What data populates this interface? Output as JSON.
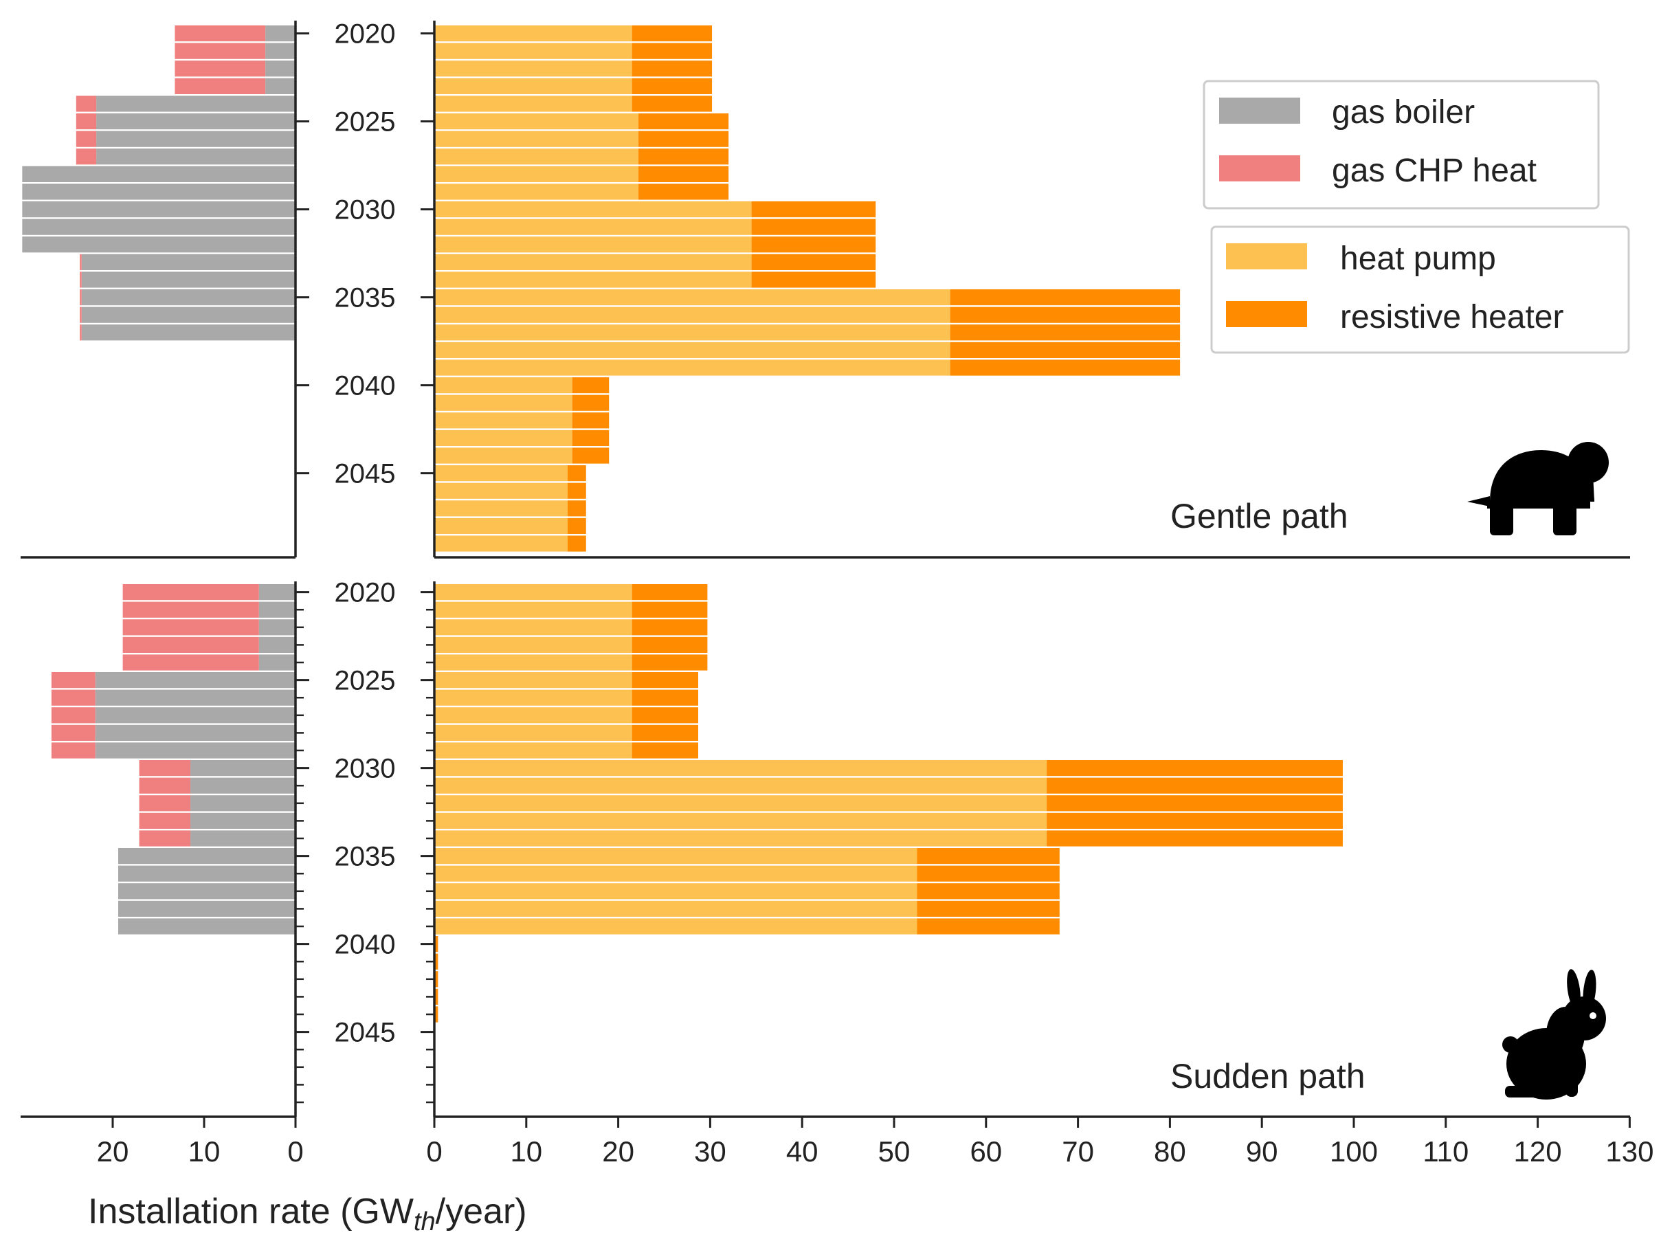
{
  "chart_data": {
    "type": "bar",
    "orientation": "horizontal",
    "x_unit": "GW_th/year",
    "xlabel": {
      "main": "Installation rate (GW",
      "sub": "th",
      "tail": "/year)"
    },
    "years": [
      2020,
      2021,
      2022,
      2023,
      2024,
      2025,
      2026,
      2027,
      2028,
      2029,
      2030,
      2031,
      2032,
      2033,
      2034,
      2035,
      2036,
      2037,
      2038,
      2039,
      2040,
      2041,
      2042,
      2043,
      2044,
      2045,
      2046,
      2047,
      2048,
      2049
    ],
    "y_tick_labels": [
      "2020",
      "2025",
      "2030",
      "2035",
      "2040",
      "2045"
    ],
    "left_axis": {
      "ticks": [
        "20",
        "10",
        "0"
      ],
      "xlim": [
        30,
        0
      ]
    },
    "right_axis": {
      "ticks": [
        "0",
        "10",
        "20",
        "30",
        "40",
        "50",
        "60",
        "70",
        "80",
        "90",
        "100",
        "110",
        "120",
        "130"
      ],
      "xlim": [
        0,
        130
      ]
    },
    "colors": {
      "gas_boiler": "#a9a9a9",
      "gas_chp_heat": "#f08080",
      "heat_pump": "#fdc151",
      "resistive_heater": "#ff8c00"
    },
    "legend_fossil": [
      {
        "key": "gas_boiler",
        "label": "gas boiler"
      },
      {
        "key": "gas_chp_heat",
        "label": "gas CHP heat"
      }
    ],
    "legend_electric": [
      {
        "key": "heat_pump",
        "label": "heat pump"
      },
      {
        "key": "resistive_heater",
        "label": "resistive heater"
      }
    ],
    "panels": [
      {
        "annotation": "Gentle path",
        "icon": "turtle-icon",
        "gas_boiler": [
          3.3,
          3.3,
          3.3,
          3.3,
          21.8,
          21.8,
          21.8,
          21.8,
          29.9,
          29.9,
          29.9,
          29.9,
          29.9,
          23.4,
          23.4,
          23.4,
          23.4,
          23.4,
          0,
          0,
          0,
          0,
          0,
          0,
          0,
          0,
          0,
          0,
          0,
          0
        ],
        "gas_chp_heat": [
          9.9,
          9.9,
          9.9,
          9.9,
          2.2,
          2.2,
          2.2,
          2.2,
          0,
          0,
          0,
          0,
          0,
          0.2,
          0.2,
          0.2,
          0.2,
          0.2,
          0,
          0,
          0,
          0,
          0,
          0,
          0,
          0,
          0,
          0,
          0,
          0
        ],
        "heat_pump": [
          21.5,
          21.5,
          21.5,
          21.5,
          21.5,
          22.2,
          22.2,
          22.2,
          22.2,
          22.2,
          34.5,
          34.5,
          34.5,
          34.5,
          34.5,
          56.1,
          56.1,
          56.1,
          56.1,
          56.1,
          15.0,
          15.0,
          15.0,
          15.0,
          15.0,
          14.5,
          14.5,
          14.5,
          14.5,
          14.5
        ],
        "resistive_heater": [
          8.7,
          8.7,
          8.7,
          8.7,
          8.7,
          9.8,
          9.8,
          9.8,
          9.8,
          9.8,
          13.5,
          13.5,
          13.5,
          13.5,
          13.5,
          25.0,
          25.0,
          25.0,
          25.0,
          25.0,
          4.0,
          4.0,
          4.0,
          4.0,
          4.0,
          2.0,
          2.0,
          2.0,
          2.0,
          2.0
        ]
      },
      {
        "annotation": "Sudden path",
        "icon": "rabbit-icon",
        "gas_boiler": [
          4.0,
          4.0,
          4.0,
          4.0,
          4.0,
          21.9,
          21.9,
          21.9,
          21.9,
          21.9,
          11.5,
          11.5,
          11.5,
          11.5,
          11.5,
          19.4,
          19.4,
          19.4,
          19.4,
          19.4,
          0,
          0,
          0,
          0,
          0,
          0,
          0,
          0,
          0,
          0
        ],
        "gas_chp_heat": [
          14.9,
          14.9,
          14.9,
          14.9,
          14.9,
          4.8,
          4.8,
          4.8,
          4.8,
          4.8,
          5.6,
          5.6,
          5.6,
          5.6,
          5.6,
          0,
          0,
          0,
          0,
          0,
          0,
          0,
          0,
          0,
          0,
          0,
          0,
          0,
          0,
          0
        ],
        "heat_pump": [
          21.5,
          21.5,
          21.5,
          21.5,
          21.5,
          21.5,
          21.5,
          21.5,
          21.5,
          21.5,
          66.6,
          66.6,
          66.6,
          66.6,
          66.6,
          52.5,
          52.5,
          52.5,
          52.5,
          52.5,
          0,
          0,
          0,
          0,
          0,
          0,
          0,
          0,
          0,
          0
        ],
        "resistive_heater": [
          8.2,
          8.2,
          8.2,
          8.2,
          8.2,
          7.2,
          7.2,
          7.2,
          7.2,
          7.2,
          32.2,
          32.2,
          32.2,
          32.2,
          32.2,
          15.5,
          15.5,
          15.5,
          15.5,
          15.5,
          0.4,
          0.4,
          0.4,
          0.4,
          0.4,
          0,
          0,
          0,
          0,
          0
        ]
      }
    ]
  }
}
